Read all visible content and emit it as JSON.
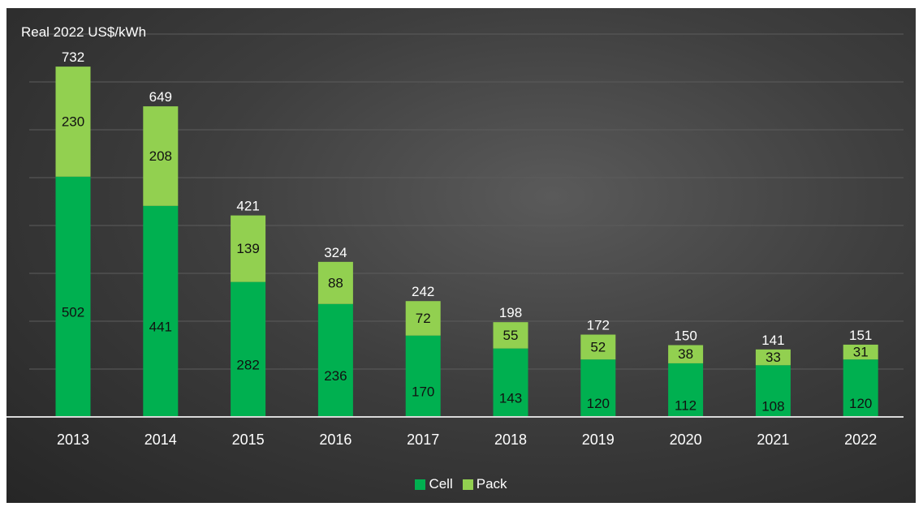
{
  "chart_data": {
    "type": "bar",
    "stacked": true,
    "title": "",
    "xlabel": "",
    "ylabel": "Real 2022 US$/kWh",
    "categories": [
      "2013",
      "2014",
      "2015",
      "2016",
      "2017",
      "2018",
      "2019",
      "2020",
      "2021",
      "2022"
    ],
    "series": [
      {
        "name": "Cell",
        "color": "#00b050",
        "values": [
          502,
          441,
          282,
          236,
          170,
          143,
          120,
          112,
          108,
          120
        ]
      },
      {
        "name": "Pack",
        "color": "#92d050",
        "values": [
          230,
          208,
          139,
          88,
          72,
          55,
          52,
          38,
          33,
          31
        ]
      }
    ],
    "totals": [
      732,
      649,
      421,
      324,
      242,
      198,
      172,
      150,
      141,
      151
    ],
    "ylim": [
      0,
      800
    ],
    "grid": true,
    "legend": "bottom-center"
  }
}
